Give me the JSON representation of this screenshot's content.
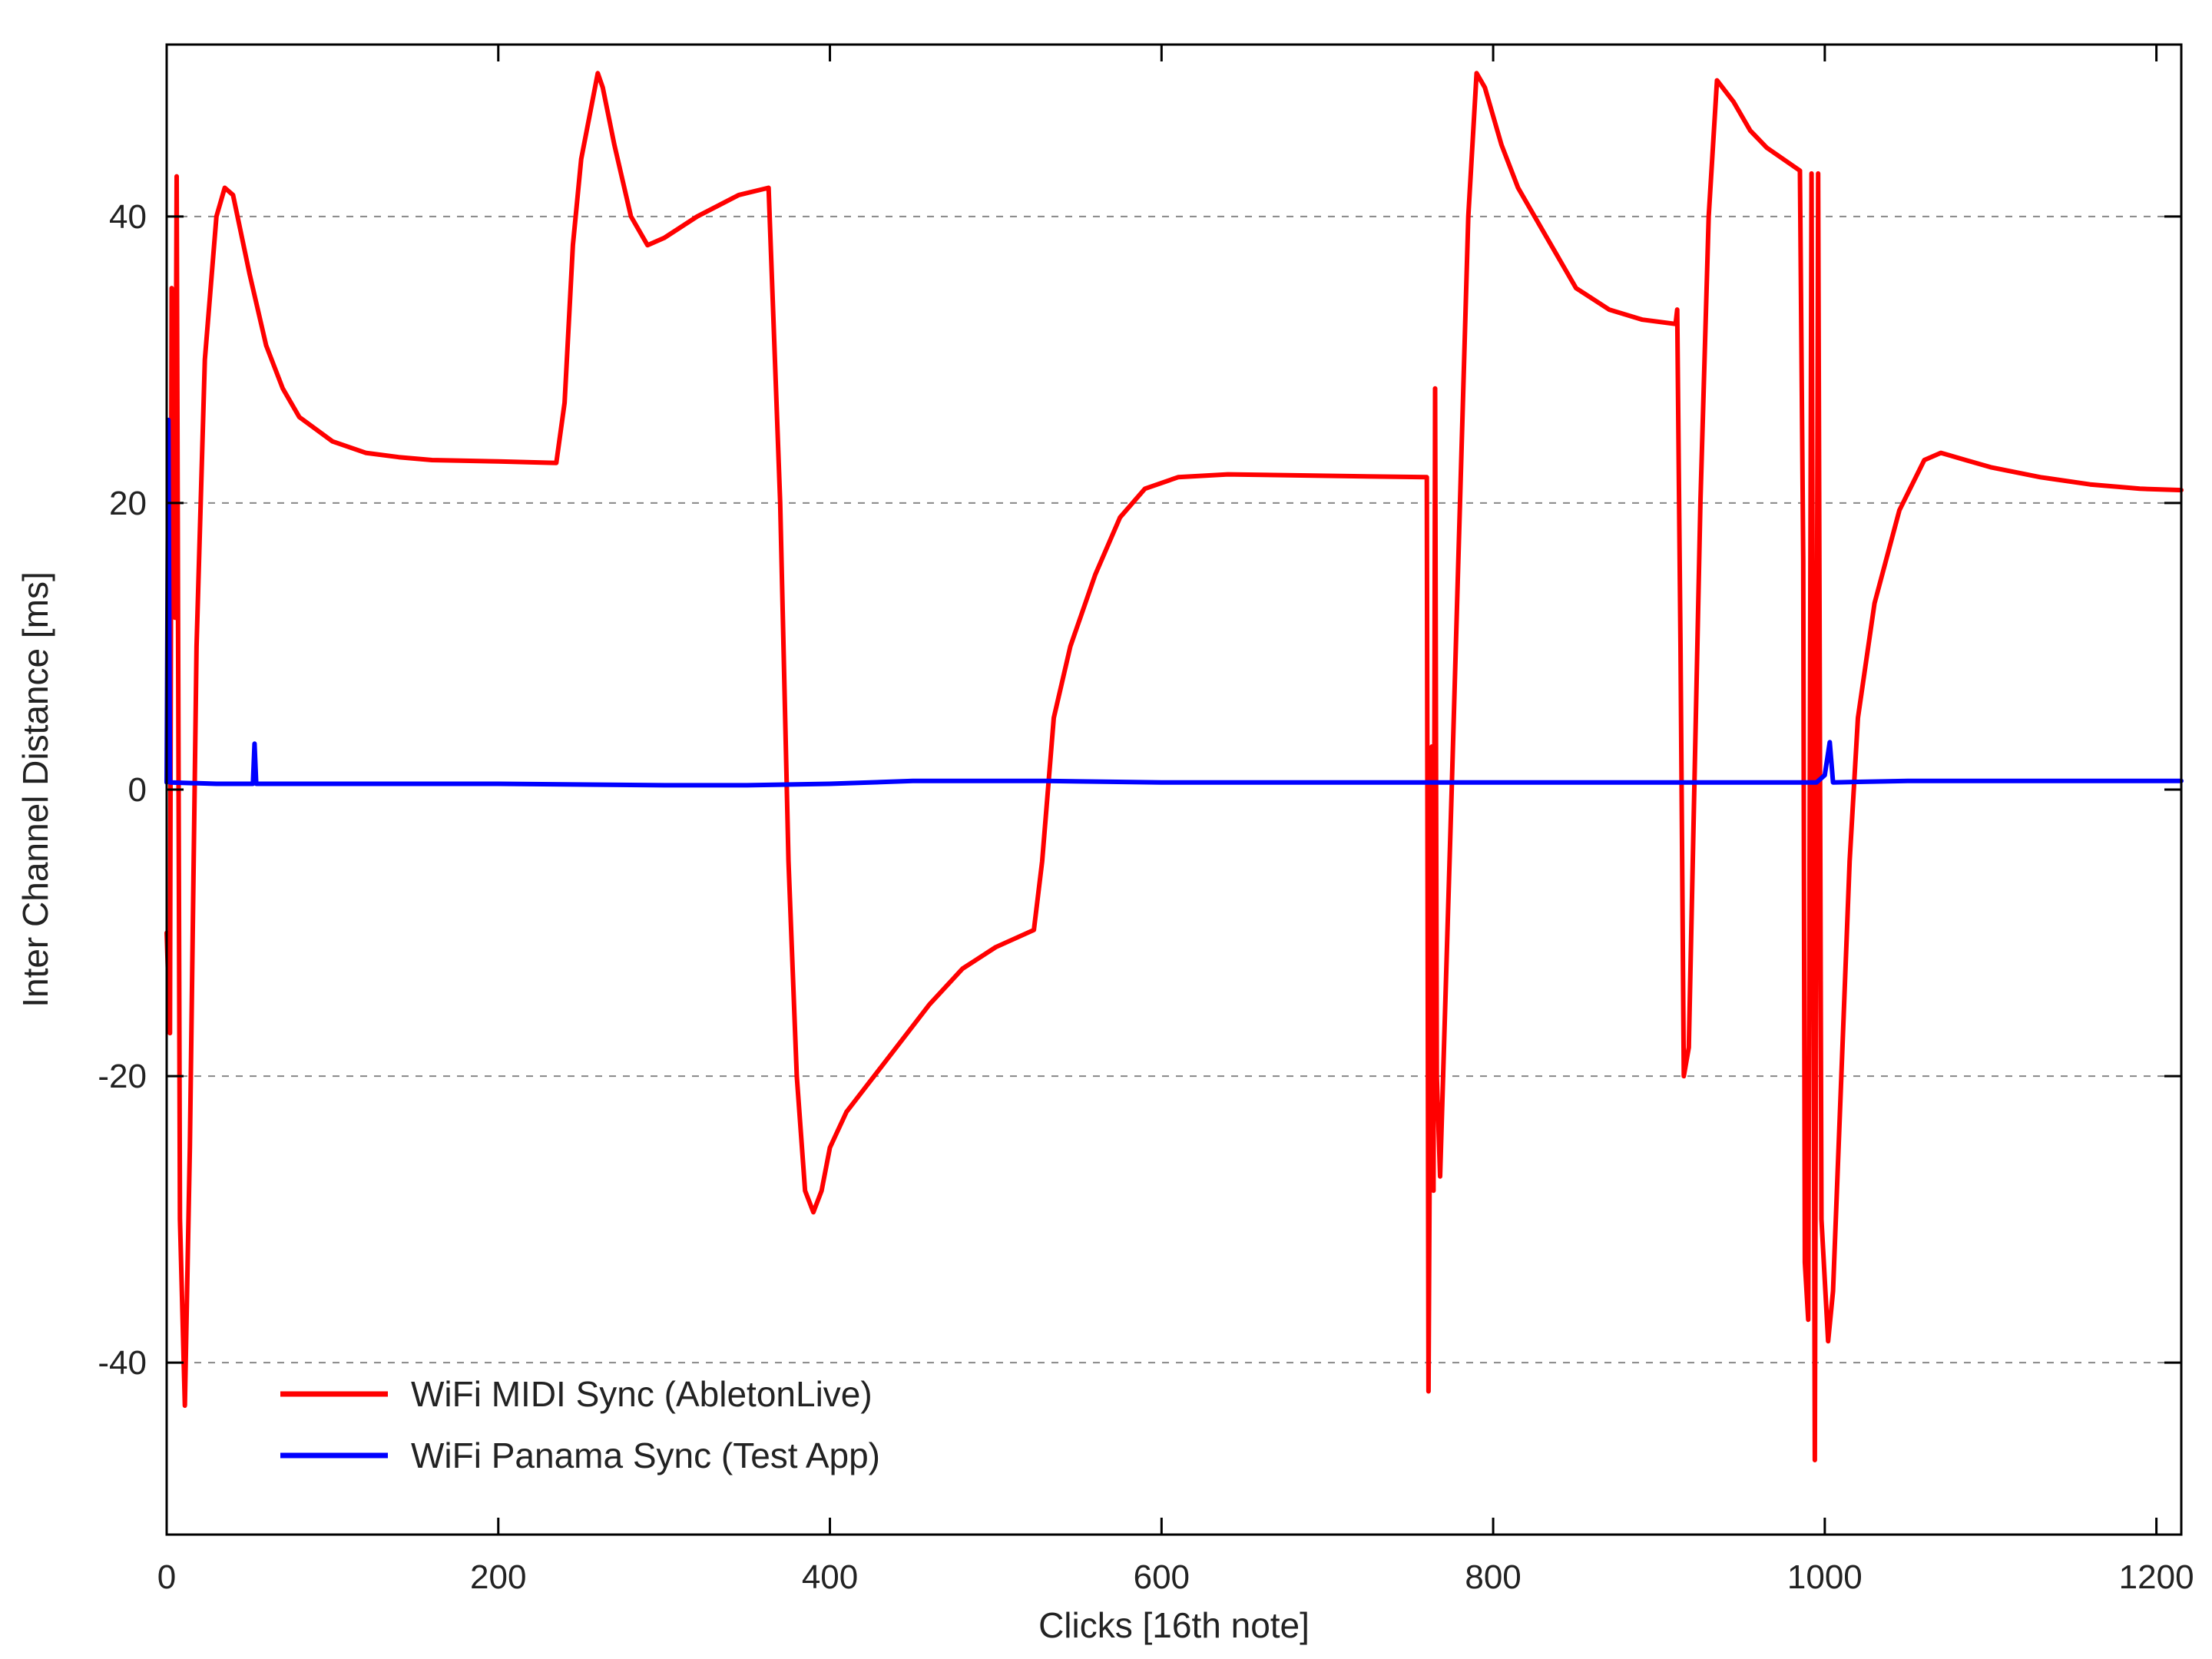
{
  "chart_data": {
    "type": "line",
    "title": "",
    "xlabel": "Clicks [16th note]",
    "ylabel": "Inter Channel Distance [ms]",
    "xlim": [
      0,
      1215
    ],
    "ylim": [
      -52,
      52
    ],
    "xticks": [
      0,
      200,
      400,
      600,
      800,
      1000,
      1200
    ],
    "yticks": [
      -40,
      -20,
      0,
      20,
      40
    ],
    "grid": "horizontal dashed",
    "legend_position": "bottom-left",
    "series": [
      {
        "name": "WiFi MIDI Sync (AbletonLive)",
        "color": "#ff0000",
        "points": [
          [
            0,
            -10
          ],
          [
            2,
            -17
          ],
          [
            3,
            35
          ],
          [
            5,
            12
          ],
          [
            6,
            42.8
          ],
          [
            8,
            -30
          ],
          [
            11,
            -43
          ],
          [
            14,
            -25
          ],
          [
            18,
            10
          ],
          [
            23,
            30
          ],
          [
            30,
            40
          ],
          [
            35,
            42
          ],
          [
            40,
            41.5
          ],
          [
            50,
            36
          ],
          [
            60,
            31
          ],
          [
            70,
            28
          ],
          [
            80,
            26
          ],
          [
            100,
            24.3
          ],
          [
            120,
            23.5
          ],
          [
            140,
            23.2
          ],
          [
            160,
            23
          ],
          [
            200,
            22.9
          ],
          [
            235,
            22.8
          ],
          [
            240,
            27
          ],
          [
            245,
            38
          ],
          [
            250,
            44
          ],
          [
            255,
            47
          ],
          [
            260,
            50
          ],
          [
            263,
            49
          ],
          [
            270,
            45
          ],
          [
            280,
            40
          ],
          [
            290,
            38
          ],
          [
            300,
            38.5
          ],
          [
            320,
            40
          ],
          [
            345,
            41.5
          ],
          [
            363,
            42
          ],
          [
            370,
            20
          ],
          [
            375,
            -5
          ],
          [
            380,
            -20
          ],
          [
            385,
            -28
          ],
          [
            390,
            -29.5
          ],
          [
            395,
            -28
          ],
          [
            400,
            -25
          ],
          [
            410,
            -22.5
          ],
          [
            420,
            -21
          ],
          [
            440,
            -18
          ],
          [
            460,
            -15
          ],
          [
            480,
            -12.5
          ],
          [
            500,
            -11
          ],
          [
            523,
            -9.8
          ],
          [
            528,
            -5
          ],
          [
            535,
            5
          ],
          [
            545,
            10
          ],
          [
            560,
            15
          ],
          [
            575,
            19
          ],
          [
            590,
            21
          ],
          [
            610,
            21.8
          ],
          [
            640,
            22
          ],
          [
            700,
            21.9
          ],
          [
            760,
            21.8
          ],
          [
            761,
            -42
          ],
          [
            763,
            3
          ],
          [
            764,
            -28
          ],
          [
            765,
            28
          ],
          [
            766,
            -20
          ],
          [
            768,
            -27
          ],
          [
            775,
            0
          ],
          [
            785,
            40
          ],
          [
            790,
            50
          ],
          [
            795,
            49
          ],
          [
            805,
            45
          ],
          [
            815,
            42
          ],
          [
            830,
            39
          ],
          [
            850,
            35
          ],
          [
            870,
            33.5
          ],
          [
            890,
            32.8
          ],
          [
            910,
            32.5
          ],
          [
            911,
            33.5
          ],
          [
            913,
            10
          ],
          [
            915,
            -20
          ],
          [
            918,
            -18
          ],
          [
            925,
            20
          ],
          [
            930,
            40
          ],
          [
            935,
            49.5
          ],
          [
            945,
            48
          ],
          [
            955,
            46
          ],
          [
            965,
            44.8
          ],
          [
            985,
            43.2
          ],
          [
            987,
            16
          ],
          [
            988,
            -33
          ],
          [
            990,
            -37
          ],
          [
            992,
            43
          ],
          [
            994,
            -46.8
          ],
          [
            996,
            43
          ],
          [
            998,
            -30
          ],
          [
            1002,
            -38.5
          ],
          [
            1005,
            -35
          ],
          [
            1010,
            -20
          ],
          [
            1015,
            -5
          ],
          [
            1020,
            5
          ],
          [
            1030,
            13
          ],
          [
            1045,
            19.5
          ],
          [
            1060,
            23
          ],
          [
            1070,
            23.5
          ],
          [
            1085,
            23
          ],
          [
            1100,
            22.5
          ],
          [
            1130,
            21.8
          ],
          [
            1160,
            21.3
          ],
          [
            1190,
            21
          ],
          [
            1215,
            20.9
          ]
        ]
      },
      {
        "name": "WiFi Panama Sync (Test App)",
        "color": "#0000ff",
        "points": [
          [
            0,
            0.5
          ],
          [
            1,
            25.8
          ],
          [
            2,
            0.5
          ],
          [
            30,
            0.4
          ],
          [
            52,
            0.4
          ],
          [
            53,
            3.2
          ],
          [
            54,
            0.4
          ],
          [
            100,
            0.4
          ],
          [
            200,
            0.4
          ],
          [
            300,
            0.3
          ],
          [
            350,
            0.3
          ],
          [
            400,
            0.4
          ],
          [
            450,
            0.6
          ],
          [
            500,
            0.6
          ],
          [
            530,
            0.6
          ],
          [
            600,
            0.5
          ],
          [
            700,
            0.5
          ],
          [
            760,
            0.5
          ],
          [
            800,
            0.5
          ],
          [
            850,
            0.5
          ],
          [
            900,
            0.5
          ],
          [
            950,
            0.5
          ],
          [
            995,
            0.5
          ],
          [
            1000,
            1
          ],
          [
            1003,
            3.3
          ],
          [
            1005,
            0.5
          ],
          [
            1050,
            0.6
          ],
          [
            1100,
            0.6
          ],
          [
            1150,
            0.6
          ],
          [
            1215,
            0.6
          ]
        ]
      }
    ]
  }
}
